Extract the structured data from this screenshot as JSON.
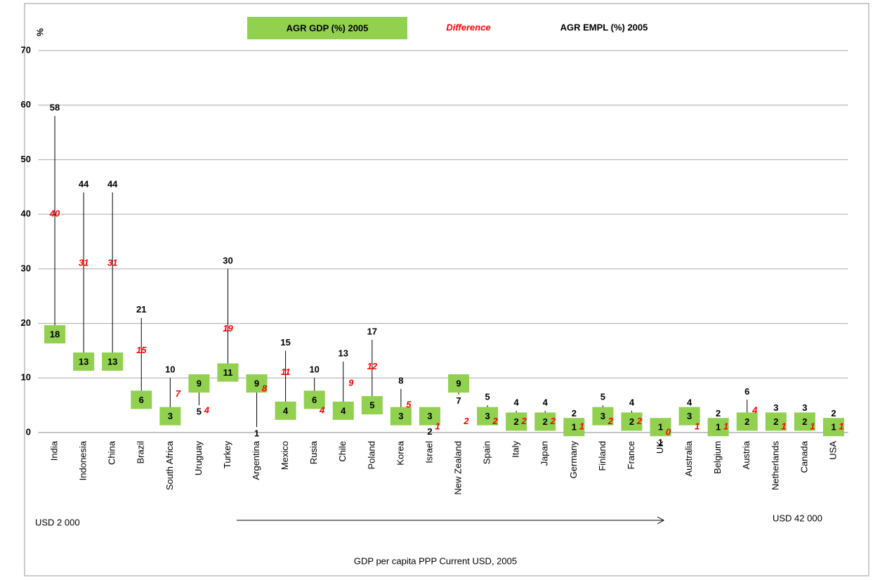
{
  "chart_data": {
    "type": "range",
    "y_label": "%",
    "x_label": "GDP per capita  PPP Current USD, 2005",
    "annotations": [
      "USD   2 000",
      "USD   42 000"
    ],
    "categories": [
      "India",
      "Indonesia",
      "China",
      "Brazil",
      "South Africa",
      "Uruguay",
      "Turkey",
      "Argentina",
      "Mexico",
      "Rusia",
      "Chile",
      "Poland",
      "Korea",
      "Israel",
      "New Zealand",
      "Spain",
      "Italy",
      "Japan",
      "Germany",
      "Finland",
      "France",
      "UK",
      "Australia",
      "Belgium",
      "Austria",
      "Netherlands",
      "Canada",
      "USA"
    ],
    "series": [
      {
        "name": "AGR GDP (%) 2005",
        "color": "#92d050",
        "values": [
          18,
          13,
          13,
          6,
          3,
          9,
          11,
          9,
          4,
          6,
          4,
          5,
          3,
          3,
          9,
          3,
          2,
          2,
          1,
          3,
          2,
          1,
          3,
          1,
          2,
          2,
          2,
          1
        ]
      },
      {
        "name": "AGR EMPL (%) 2005",
        "color": "#000000",
        "values": [
          58,
          44,
          44,
          21,
          10,
          5,
          30,
          1,
          15,
          10,
          13,
          17,
          8,
          2,
          7,
          5,
          4,
          4,
          2,
          5,
          4,
          1,
          4,
          2,
          6,
          3,
          3,
          2
        ]
      },
      {
        "name": "Difference",
        "color": "#ff0000",
        "values": [
          40,
          31,
          31,
          15,
          7,
          4,
          19,
          8,
          11,
          4,
          9,
          12,
          5,
          1,
          2,
          2,
          2,
          2,
          1,
          2,
          2,
          0,
          1,
          1,
          4,
          1,
          1,
          1
        ]
      }
    ],
    "ylim": [
      0,
      70
    ],
    "yticks": [
      0,
      10,
      20,
      30,
      40,
      50,
      60,
      70
    ],
    "grid": true
  }
}
